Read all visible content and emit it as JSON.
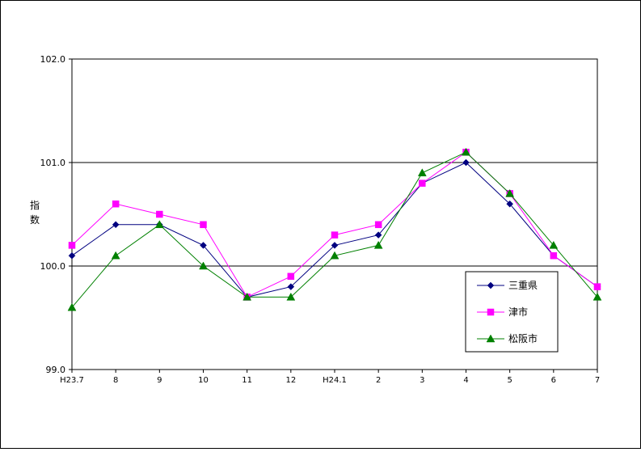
{
  "chart_data": {
    "type": "line",
    "ylabel": "指数",
    "categories": [
      "H23.7",
      "8",
      "9",
      "10",
      "11",
      "12",
      "H24.1",
      "2",
      "3",
      "4",
      "5",
      "6",
      "7"
    ],
    "ylim": [
      99.0,
      102.0
    ],
    "yticks": [
      "99.0",
      "100.0",
      "101.0",
      "102.0"
    ],
    "grid": "horizontal",
    "legend_position": "bottom-right",
    "series": [
      {
        "name": "三重県",
        "marker": "diamond",
        "color": "#000080",
        "values": [
          100.1,
          100.4,
          100.4,
          100.2,
          99.7,
          99.8,
          100.2,
          100.3,
          100.8,
          101.0,
          100.6,
          100.1,
          99.8
        ]
      },
      {
        "name": "津市",
        "marker": "square",
        "color": "#ff00ff",
        "values": [
          100.2,
          100.6,
          100.5,
          100.4,
          99.7,
          99.9,
          100.3,
          100.4,
          100.8,
          101.1,
          100.7,
          100.1,
          99.8
        ]
      },
      {
        "name": "松阪市",
        "marker": "triangle",
        "color": "#008000",
        "values": [
          99.6,
          100.1,
          100.4,
          100.0,
          99.7,
          99.7,
          100.1,
          100.2,
          100.9,
          101.1,
          100.7,
          100.2,
          99.7
        ]
      }
    ]
  }
}
